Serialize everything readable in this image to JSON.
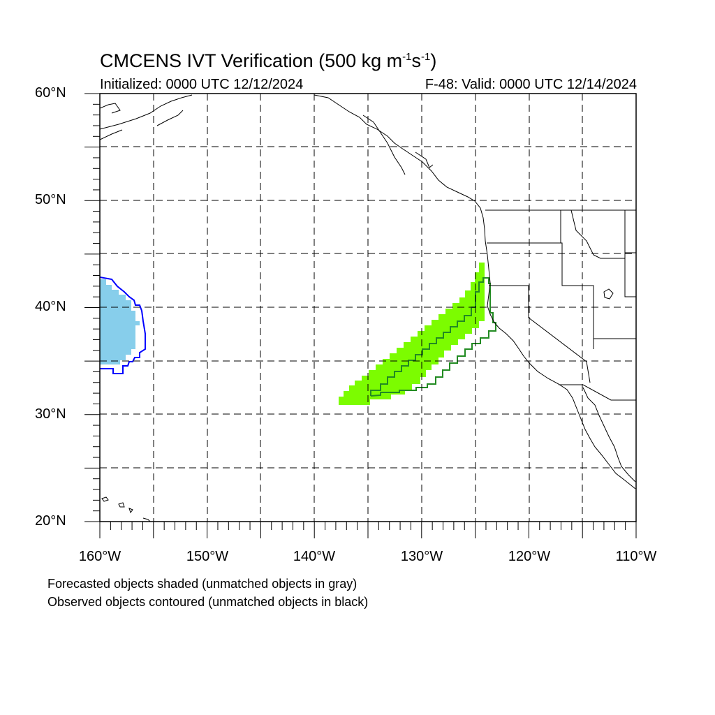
{
  "title": {
    "main": "CMCENS IVT Verification (500 kg m",
    "sup1": "-1",
    "mid": "s",
    "sup2": "-1",
    "close": ")"
  },
  "subtitle_left": "Initialized: 0000 UTC 12/12/2024",
  "subtitle_right": "F-48: Valid: 0000 UTC 12/14/2024",
  "lat_labels": [
    "60°N",
    "50°N",
    "40°N",
    "30°N",
    "20°N"
  ],
  "lon_labels": [
    "160°W",
    "150°W",
    "140°W",
    "130°W",
    "120°W",
    "110°W"
  ],
  "notes": [
    "Forecasted objects shaded (unmatched objects in gray)",
    "Observed objects contoured (unmatched objects in black)"
  ],
  "map": {
    "lon_range": [
      -160,
      -110
    ],
    "lat_range": [
      20,
      60
    ],
    "grid_interval_deg": 5,
    "colors": {
      "forecast_object_1": "#87ceeb",
      "observed_object_1": "#0000ff",
      "forecast_object_2": "#7cfc00",
      "observed_object_2": "#228b22",
      "coastline": "#000000"
    }
  }
}
